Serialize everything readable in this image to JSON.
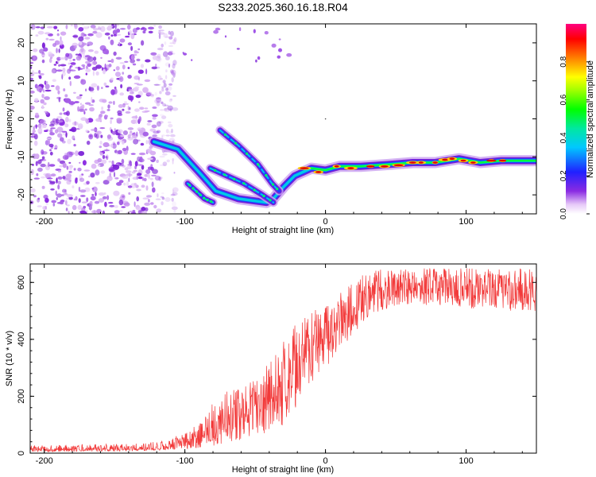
{
  "figure": {
    "title": "S233.2025.360.16.18.R04"
  },
  "chart_data": [
    {
      "type": "heatmap",
      "name": "spectrogram",
      "title": "S233.2025.360.16.18.R04",
      "xlabel": "Height of straight line (km)",
      "ylabel": "Frequency (Hz)",
      "xlim": [
        -210,
        150
      ],
      "ylim": [
        -25,
        25
      ],
      "xticks": [
        -200,
        -100,
        0,
        100
      ],
      "yticks": [
        -20,
        -10,
        0,
        10,
        20
      ],
      "noise_region_x": [
        -210,
        -115
      ],
      "ridges": [
        {
          "name": "main-trace",
          "points": [
            [
              -122,
              -6
            ],
            [
              -105,
              -8
            ],
            [
              -90,
              -14
            ],
            [
              -78,
              -19
            ],
            [
              -62,
              -21
            ],
            [
              -42,
              -22
            ],
            [
              -37,
              -21
            ],
            [
              -30,
              -18
            ],
            [
              -22,
              -15
            ],
            [
              -10,
              -13
            ],
            [
              0,
              -13.5
            ],
            [
              10,
              -12.5
            ],
            [
              25,
              -12.5
            ],
            [
              45,
              -12
            ],
            [
              62,
              -11.5
            ],
            [
              78,
              -11.5
            ],
            [
              95,
              -10.5
            ],
            [
              110,
              -11.5
            ],
            [
              125,
              -11
            ],
            [
              150,
              -11
            ]
          ]
        },
        {
          "name": "upper-echo",
          "points": [
            [
              -75,
              -3
            ],
            [
              -62,
              -7
            ],
            [
              -48,
              -12
            ],
            [
              -38,
              -17
            ],
            [
              -33,
              -19
            ]
          ]
        },
        {
          "name": "middle-echo",
          "points": [
            [
              -82,
              -13
            ],
            [
              -70,
              -15
            ],
            [
              -58,
              -17
            ],
            [
              -45,
              -20
            ],
            [
              -37,
              -22
            ]
          ]
        },
        {
          "name": "lower-echo",
          "points": [
            [
              -98,
              -17
            ],
            [
              -92,
              -19
            ],
            [
              -86,
              -21
            ],
            [
              -80,
              -22
            ]
          ]
        }
      ]
    },
    {
      "type": "colorbar",
      "name": "amplitude-scale",
      "label": "Normalized spectral amplitude",
      "range": [
        0,
        1
      ],
      "ticks": [
        0.0,
        0.2,
        0.4,
        0.6,
        0.8
      ],
      "tick_labels": [
        "0.0",
        "0.2",
        "0.4",
        "0.6",
        "0.8"
      ]
    },
    {
      "type": "line",
      "name": "snr",
      "xlabel": "Height of straight line (km)",
      "ylabel": "SNR (10 * v/v)",
      "xlim": [
        -210,
        150
      ],
      "ylim": [
        0,
        665
      ],
      "xticks": [
        -200,
        -100,
        0,
        100
      ],
      "yticks": [
        0,
        200,
        400,
        600
      ],
      "color": "#f23a3a",
      "series": [
        {
          "name": "SNR",
          "x": [
            -210,
            -180,
            -150,
            -130,
            -120,
            -110,
            -100,
            -90,
            -80,
            -70,
            -60,
            -50,
            -40,
            -30,
            -20,
            -10,
            0,
            10,
            20,
            30,
            40,
            50,
            60,
            80,
            100,
            120,
            150
          ],
          "envelope_low": [
            5,
            5,
            6,
            8,
            10,
            12,
            15,
            18,
            25,
            30,
            40,
            50,
            70,
            100,
            150,
            250,
            300,
            350,
            420,
            470,
            500,
            520,
            520,
            520,
            510,
            500,
            500
          ],
          "envelope_high": [
            28,
            30,
            32,
            35,
            40,
            50,
            80,
            100,
            180,
            220,
            240,
            260,
            330,
            400,
            480,
            500,
            520,
            560,
            600,
            640,
            650,
            650,
            650,
            650,
            650,
            650,
            650
          ],
          "mean": [
            12,
            13,
            14,
            15,
            18,
            22,
            35,
            50,
            80,
            100,
            130,
            160,
            200,
            250,
            310,
            360,
            400,
            460,
            520,
            560,
            580,
            585,
            585,
            585,
            585,
            585,
            585
          ]
        }
      ]
    }
  ]
}
